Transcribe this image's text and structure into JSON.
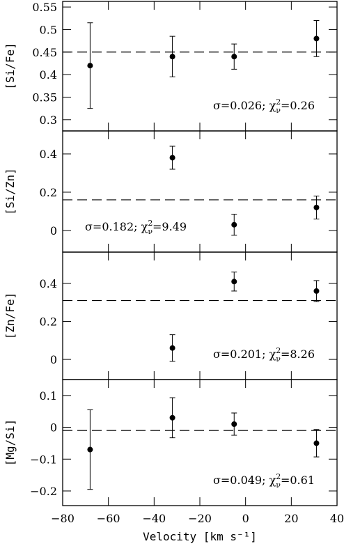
{
  "chart_data": [
    {
      "type": "scatter",
      "ylabel": "[Si/Fe]",
      "x": [
        -68,
        -32,
        -5,
        31
      ],
      "values": [
        0.42,
        0.44,
        0.44,
        0.48
      ],
      "errors": [
        0.095,
        0.045,
        0.028,
        0.04
      ],
      "reference": 0.45,
      "xlim": [
        -80,
        40
      ],
      "xticks": [
        {
          "value": -80,
          "label": "−80"
        },
        {
          "value": -60,
          "label": "−60"
        },
        {
          "value": -40,
          "label": "−40"
        },
        {
          "value": -20,
          "label": "−20"
        },
        0,
        20,
        40
      ],
      "ylim": [
        0.275,
        0.5625
      ],
      "yticks": [
        0.3,
        0.35,
        0.4,
        0.45,
        0.5,
        0.55
      ],
      "color": "#000000",
      "annotation": {
        "text": "σ=0.026;  χ",
        "sup": "2",
        "sub": "ν",
        "rest": "=0.26"
      },
      "annotation_position": "lower right"
    },
    {
      "type": "scatter",
      "ylabel": "[Si/Zn]",
      "x": [
        -32,
        -5,
        31
      ],
      "values": [
        0.38,
        0.03,
        0.12
      ],
      "errors": [
        0.06,
        0.055,
        0.06
      ],
      "reference": 0.16,
      "xlim": [
        -80,
        40
      ],
      "xticks": [
        -80,
        -60,
        -40,
        -20,
        0,
        20,
        40
      ],
      "ylim": [
        -0.113,
        0.52
      ],
      "yticks": [
        0,
        0.2,
        0.4
      ],
      "color": "#000000",
      "annotation": {
        "text": "σ=0.182;  χ",
        "sup": "2",
        "sub": "ν",
        "rest": "=9.49"
      },
      "annotation_position": "lower left"
    },
    {
      "type": "scatter",
      "ylabel": "[Zn/Fe]",
      "x": [
        -32,
        -5,
        31
      ],
      "values": [
        0.06,
        0.41,
        0.36
      ],
      "errors": [
        0.07,
        0.05,
        0.055
      ],
      "reference": 0.31,
      "xlim": [
        -80,
        40
      ],
      "xticks": [
        -80,
        -60,
        -40,
        -20,
        0,
        20,
        40
      ],
      "ylim": [
        -0.106,
        0.565
      ],
      "yticks": [
        0,
        0.2,
        0.4
      ],
      "color": "#000000",
      "annotation": {
        "text": "σ=0.201;  χ",
        "sup": "2",
        "sub": "ν",
        "rest": "=8.26"
      },
      "annotation_position": "lower right"
    },
    {
      "type": "scatter",
      "ylabel": "[Mg/Si]",
      "xlabel": "Velocity [km s⁻¹]",
      "x": [
        -68,
        -32,
        -5,
        31
      ],
      "values": [
        -0.07,
        0.03,
        0.01,
        -0.05
      ],
      "errors": [
        0.125,
        0.063,
        0.035,
        0.043
      ],
      "reference": -0.01,
      "xlim": [
        -80,
        40
      ],
      "xticks": [
        {
          "value": -80,
          "label": "−80"
        },
        {
          "value": -60,
          "label": "−60"
        },
        {
          "value": -40,
          "label": "−40"
        },
        {
          "value": -20,
          "label": "−20"
        },
        0,
        20,
        40
      ],
      "ylim": [
        -0.246,
        0.15
      ],
      "yticks": [
        {
          "value": -0.2,
          "label": "−0.2"
        },
        {
          "value": -0.1,
          "label": "−0.1"
        },
        0,
        0.1
      ],
      "color": "#000000",
      "annotation": {
        "text": "σ=0.049;  χ",
        "sup": "2",
        "sub": "ν",
        "rest": "=0.61"
      },
      "annotation_position": "lower right"
    }
  ]
}
